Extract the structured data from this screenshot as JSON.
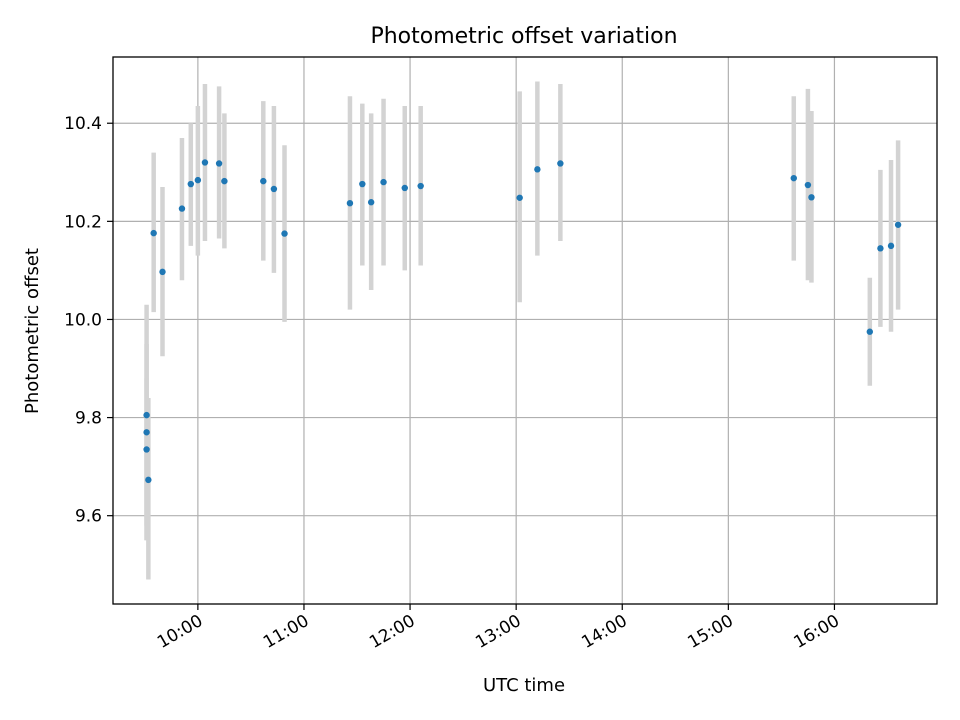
{
  "chart_data": {
    "type": "scatter",
    "title": "Photometric offset variation",
    "xlabel": "UTC time",
    "ylabel": "Photometric offset",
    "x_is_time": true,
    "xlim": [
      "09:12",
      "16:58"
    ],
    "ylim": [
      9.42,
      10.535
    ],
    "x_ticks": [
      "10:00",
      "11:00",
      "12:00",
      "13:00",
      "14:00",
      "15:00",
      "16:00"
    ],
    "y_ticks": [
      9.6,
      9.8,
      10.0,
      10.2,
      10.4
    ],
    "y_tick_labels": [
      "9.6",
      "9.8",
      "10.0",
      "10.2",
      "10.4"
    ],
    "grid": true,
    "marker_color": "#1f77b4",
    "errorbar_color": "#d3d3d3",
    "points": [
      {
        "t": "09:31",
        "y": 9.805,
        "lo": 9.58,
        "hi": 10.03
      },
      {
        "t": "09:31",
        "y": 9.77,
        "lo": 9.55,
        "hi": 9.95
      },
      {
        "t": "09:31",
        "y": 9.735,
        "lo": 9.55,
        "hi": 9.88
      },
      {
        "t": "09:32",
        "y": 9.673,
        "lo": 9.47,
        "hi": 9.84
      },
      {
        "t": "09:35",
        "y": 10.176,
        "lo": 10.015,
        "hi": 10.34
      },
      {
        "t": "09:40",
        "y": 10.097,
        "lo": 9.925,
        "hi": 10.27
      },
      {
        "t": "09:51",
        "y": 10.226,
        "lo": 10.08,
        "hi": 10.37
      },
      {
        "t": "09:56",
        "y": 10.276,
        "lo": 10.15,
        "hi": 10.4
      },
      {
        "t": "10:00",
        "y": 10.284,
        "lo": 10.13,
        "hi": 10.435
      },
      {
        "t": "10:04",
        "y": 10.32,
        "lo": 10.16,
        "hi": 10.48
      },
      {
        "t": "10:12",
        "y": 10.318,
        "lo": 10.165,
        "hi": 10.475
      },
      {
        "t": "10:15",
        "y": 10.282,
        "lo": 10.145,
        "hi": 10.42
      },
      {
        "t": "10:37",
        "y": 10.282,
        "lo": 10.12,
        "hi": 10.445
      },
      {
        "t": "10:43",
        "y": 10.266,
        "lo": 10.095,
        "hi": 10.435
      },
      {
        "t": "10:49",
        "y": 10.175,
        "lo": 9.995,
        "hi": 10.355
      },
      {
        "t": "11:26",
        "y": 10.237,
        "lo": 10.02,
        "hi": 10.455
      },
      {
        "t": "11:33",
        "y": 10.276,
        "lo": 10.11,
        "hi": 10.44
      },
      {
        "t": "11:38",
        "y": 10.239,
        "lo": 10.06,
        "hi": 10.42
      },
      {
        "t": "11:45",
        "y": 10.28,
        "lo": 10.11,
        "hi": 10.45
      },
      {
        "t": "11:57",
        "y": 10.268,
        "lo": 10.1,
        "hi": 10.435
      },
      {
        "t": "12:06",
        "y": 10.272,
        "lo": 10.11,
        "hi": 10.435
      },
      {
        "t": "13:02",
        "y": 10.248,
        "lo": 10.035,
        "hi": 10.465
      },
      {
        "t": "13:12",
        "y": 10.306,
        "lo": 10.13,
        "hi": 10.485
      },
      {
        "t": "13:25",
        "y": 10.318,
        "lo": 10.16,
        "hi": 10.48
      },
      {
        "t": "15:37",
        "y": 10.288,
        "lo": 10.12,
        "hi": 10.455
      },
      {
        "t": "15:45",
        "y": 10.274,
        "lo": 10.08,
        "hi": 10.47
      },
      {
        "t": "15:47",
        "y": 10.249,
        "lo": 10.075,
        "hi": 10.425
      },
      {
        "t": "16:20",
        "y": 9.975,
        "lo": 9.865,
        "hi": 10.085
      },
      {
        "t": "16:26",
        "y": 10.145,
        "lo": 9.985,
        "hi": 10.305
      },
      {
        "t": "16:32",
        "y": 10.15,
        "lo": 9.975,
        "hi": 10.325
      },
      {
        "t": "16:36",
        "y": 10.193,
        "lo": 10.02,
        "hi": 10.365
      }
    ]
  }
}
